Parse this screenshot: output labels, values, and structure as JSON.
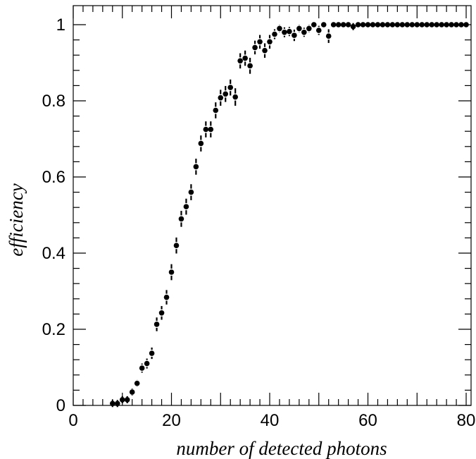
{
  "chart_data": {
    "type": "scatter",
    "xlabel": "number of detected photons",
    "ylabel": "efficiency",
    "xlim": [
      0,
      81
    ],
    "ylim": [
      0,
      1.05
    ],
    "grid": false,
    "x_ticks": [
      0,
      20,
      40,
      60,
      80
    ],
    "y_ticks": [
      0,
      0.2,
      0.4,
      0.6,
      0.8,
      1
    ],
    "y_tick_labels": [
      "0",
      "0.2",
      "0.4",
      "0.6",
      "0.8",
      "1"
    ],
    "x_tick_labels": [
      "0",
      "20",
      "40",
      "60",
      "80"
    ],
    "marker_color": "#000000",
    "x": [
      8,
      9,
      10,
      11,
      12,
      13,
      14,
      15,
      16,
      17,
      18,
      19,
      20,
      21,
      22,
      23,
      24,
      25,
      26,
      27,
      28,
      29,
      30,
      31,
      32,
      33,
      34,
      35,
      36,
      37,
      38,
      39,
      40,
      41,
      42,
      43,
      44,
      45,
      46,
      47,
      48,
      49,
      50,
      51,
      52,
      53,
      54,
      55,
      56,
      57,
      58,
      59,
      60,
      61,
      62,
      63,
      64,
      65,
      66,
      67,
      68,
      69,
      70,
      71,
      72,
      73,
      74,
      75,
      76,
      77,
      78,
      79,
      80
    ],
    "y": [
      0.005,
      0.005,
      0.015,
      0.015,
      0.035,
      0.058,
      0.098,
      0.11,
      0.137,
      0.213,
      0.243,
      0.284,
      0.35,
      0.42,
      0.49,
      0.522,
      0.56,
      0.627,
      0.688,
      0.725,
      0.725,
      0.775,
      0.808,
      0.818,
      0.835,
      0.81,
      0.905,
      0.912,
      0.892,
      0.94,
      0.955,
      0.932,
      0.955,
      0.975,
      0.99,
      0.98,
      0.982,
      0.972,
      0.99,
      0.98,
      0.99,
      1.0,
      0.985,
      1.0,
      0.97,
      1.0,
      1.0,
      1.0,
      1.0,
      0.995,
      1.0,
      1.0,
      1.0,
      1.0,
      1.0,
      1.0,
      1.0,
      1.0,
      1.0,
      1.0,
      1.0,
      1.0,
      1.0,
      1.0,
      1.0,
      1.0,
      1.0,
      1.0,
      1.0,
      1.0,
      1.0,
      1.0,
      1.0
    ],
    "yerr": [
      0.004,
      0.004,
      0.006,
      0.006,
      0.008,
      0.009,
      0.012,
      0.013,
      0.015,
      0.018,
      0.018,
      0.019,
      0.021,
      0.021,
      0.021,
      0.021,
      0.021,
      0.021,
      0.021,
      0.021,
      0.021,
      0.021,
      0.021,
      0.021,
      0.021,
      0.023,
      0.02,
      0.02,
      0.021,
      0.018,
      0.018,
      0.019,
      0.018,
      0.013,
      0.01,
      0.013,
      0.012,
      0.015,
      0.01,
      0.012,
      0.01,
      0,
      0.012,
      0,
      0.018,
      0,
      0,
      0,
      0,
      0.005,
      0,
      0,
      0,
      0,
      0,
      0,
      0,
      0,
      0,
      0,
      0,
      0,
      0,
      0,
      0,
      0,
      0,
      0,
      0,
      0,
      0,
      0,
      0
    ]
  }
}
